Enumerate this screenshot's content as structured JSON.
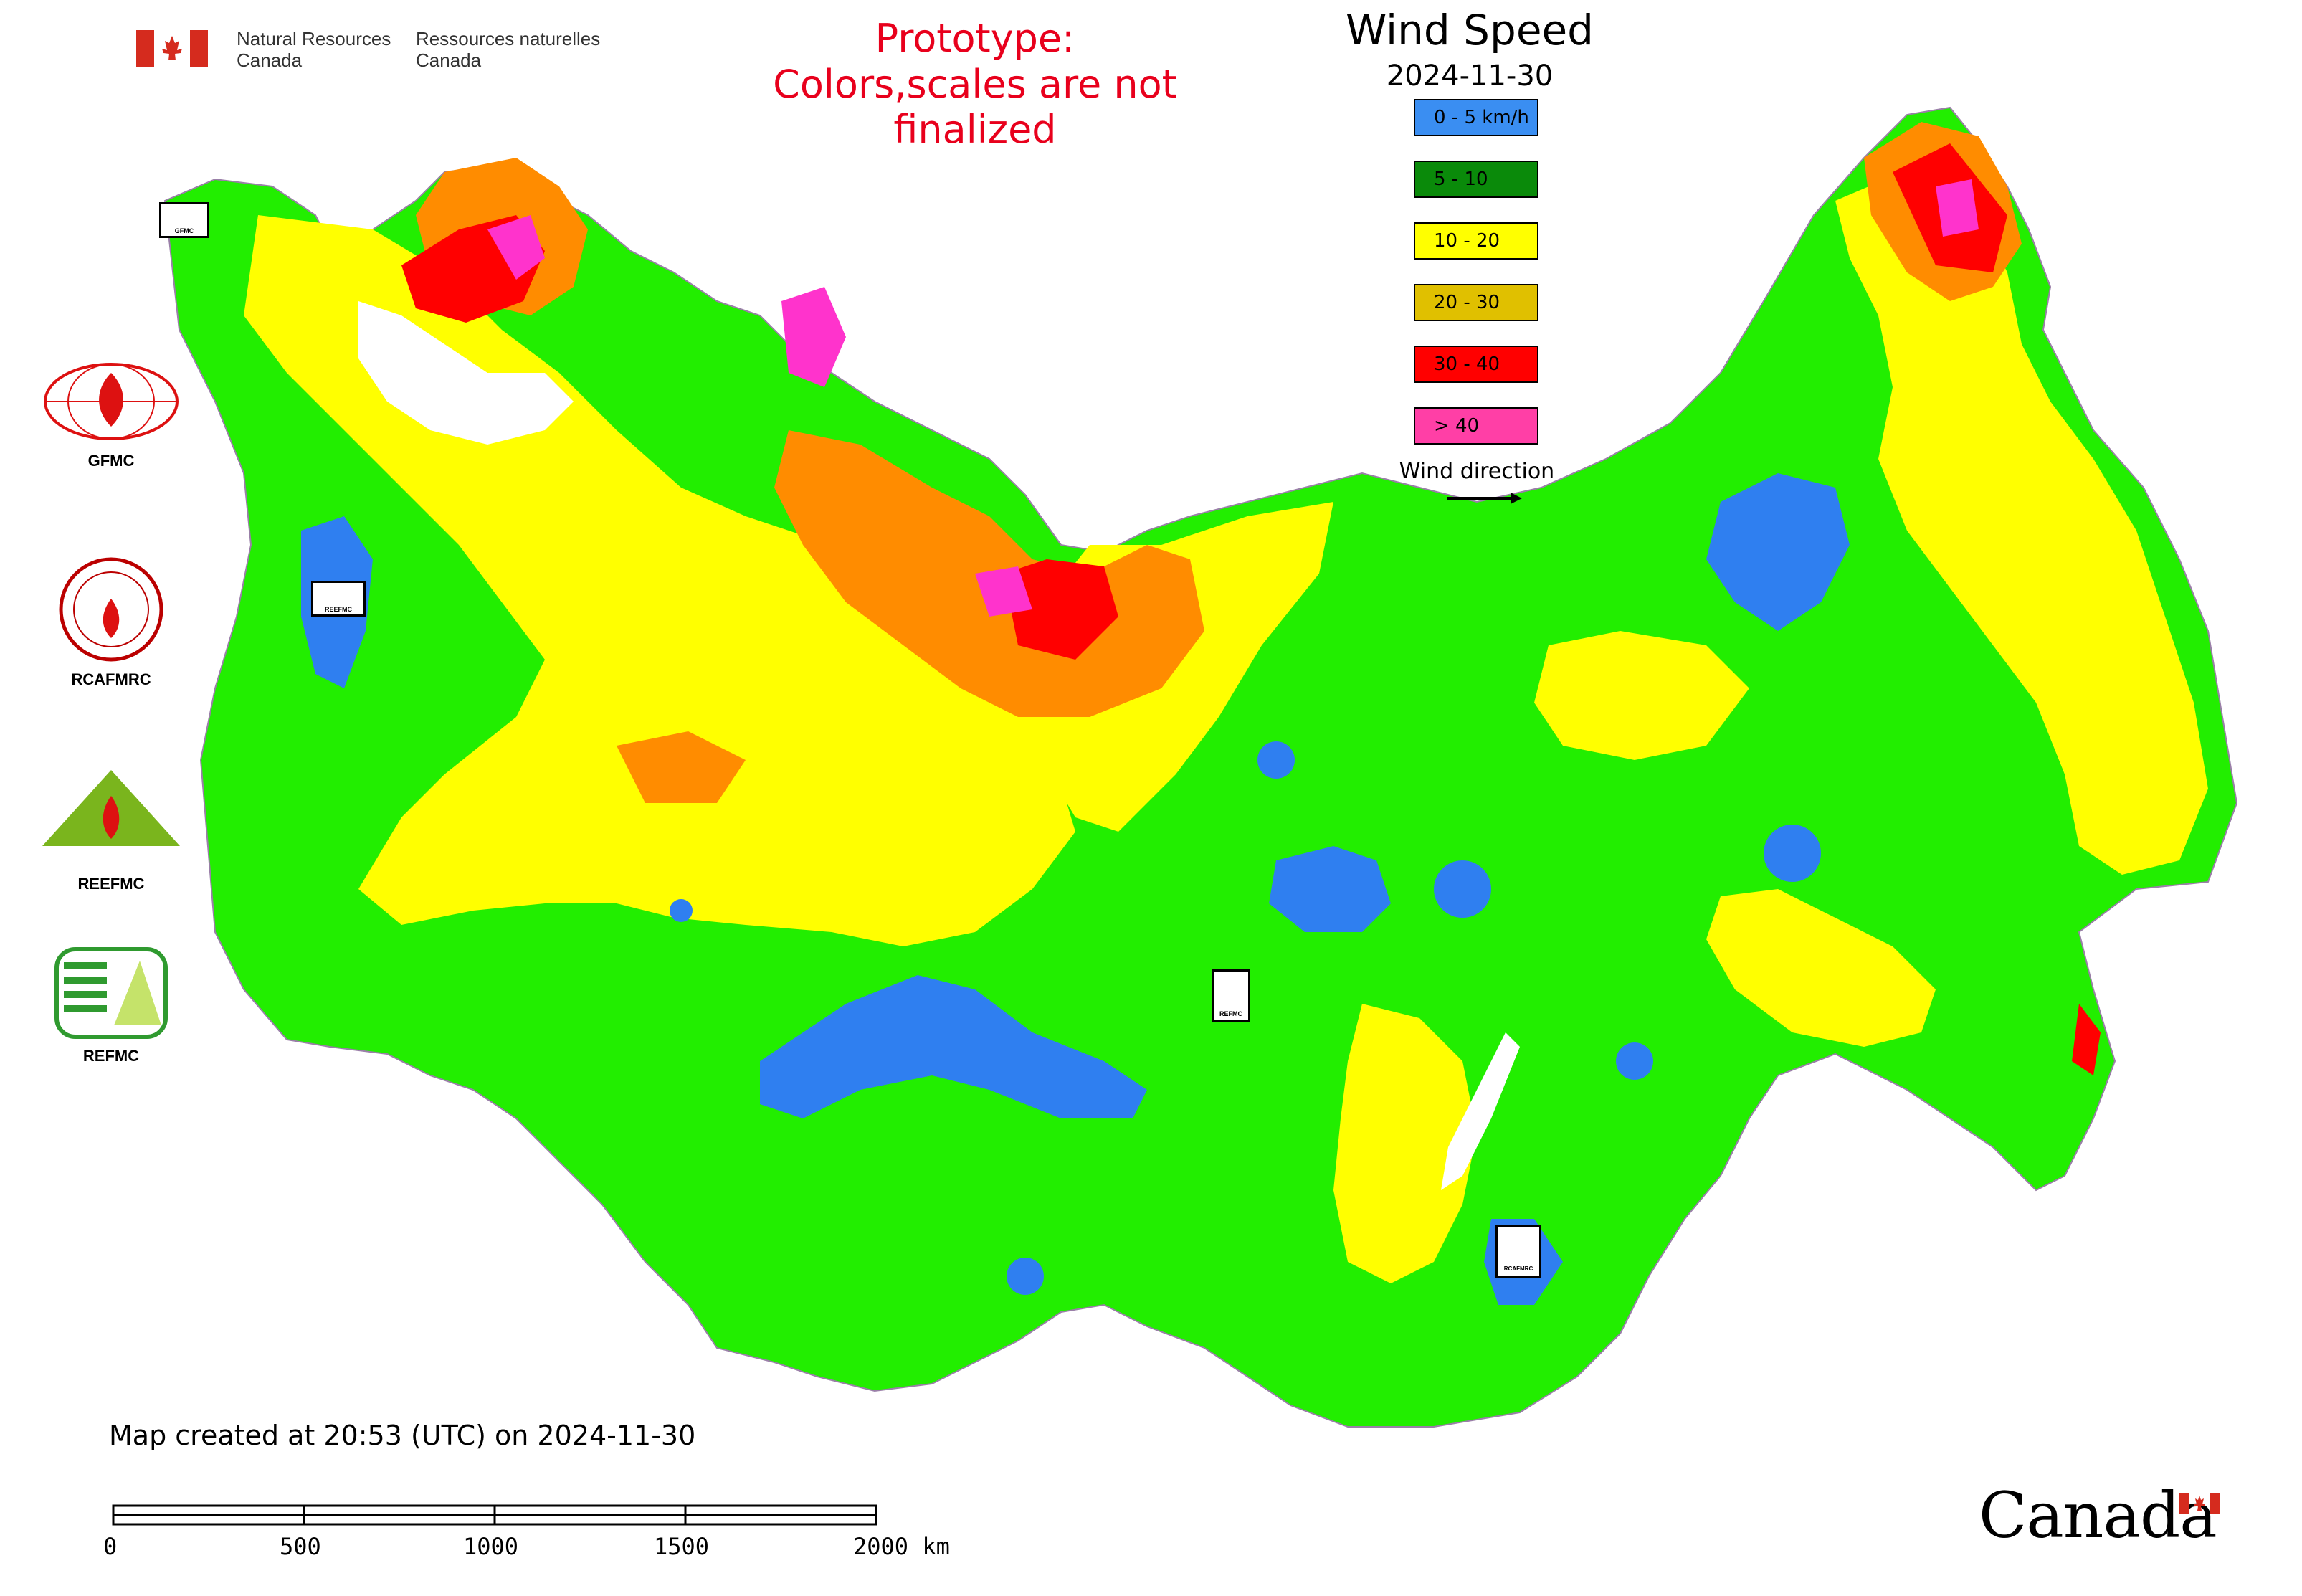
{
  "header": {
    "dept_en": [
      "Natural Resources",
      "Canada"
    ],
    "dept_fr": [
      "Ressources naturelles",
      "Canada"
    ],
    "prototype_note": [
      "Prototype:",
      "Colors,scales are not finalized"
    ]
  },
  "legend": {
    "title": "Wind Speed",
    "date": "2024-11-30",
    "items": [
      {
        "label": "0 - 5 km/h",
        "color": "#3a8ef2"
      },
      {
        "label": "5 - 10",
        "color": "#0a8a0a"
      },
      {
        "label": "10 - 20",
        "color": "#ffff00"
      },
      {
        "label": "20 - 30",
        "color": "#e0c000"
      },
      {
        "label": "30 - 40",
        "color": "#ff0000"
      },
      {
        "label": "> 40",
        "color": "#ff3fa6"
      }
    ],
    "wind_direction_label": "Wind direction"
  },
  "map_colors": {
    "zone_green": "#22ee00",
    "zone_yellow": "#ffff00",
    "zone_orange": "#ff8c00",
    "zone_red": "#ff0000",
    "zone_magenta": "#ff33cc",
    "zone_blue": "#2f7ff0",
    "boundary": "#9a7fa8"
  },
  "centers": [
    {
      "label": "GFMC",
      "icon": "gfmc-logo-icon"
    },
    {
      "label": "RCAFMRC",
      "icon": "rcafmrc-logo-icon"
    },
    {
      "label": "REEFMC",
      "icon": "reefmc-logo-icon"
    },
    {
      "label": "REFMC",
      "icon": "refmc-logo-icon"
    }
  ],
  "map_markers": [
    {
      "label": "GFMC"
    },
    {
      "label": "REEFMC"
    },
    {
      "label": "REFMC"
    },
    {
      "label": "RCAFMRC"
    }
  ],
  "caption": "Map created at 20:53 (UTC) on 2024-11-30",
  "scale": {
    "ticks": [
      "0",
      "500",
      "1000",
      "1500",
      "2000 km"
    ]
  },
  "footer": {
    "wordmark": "Canada"
  }
}
